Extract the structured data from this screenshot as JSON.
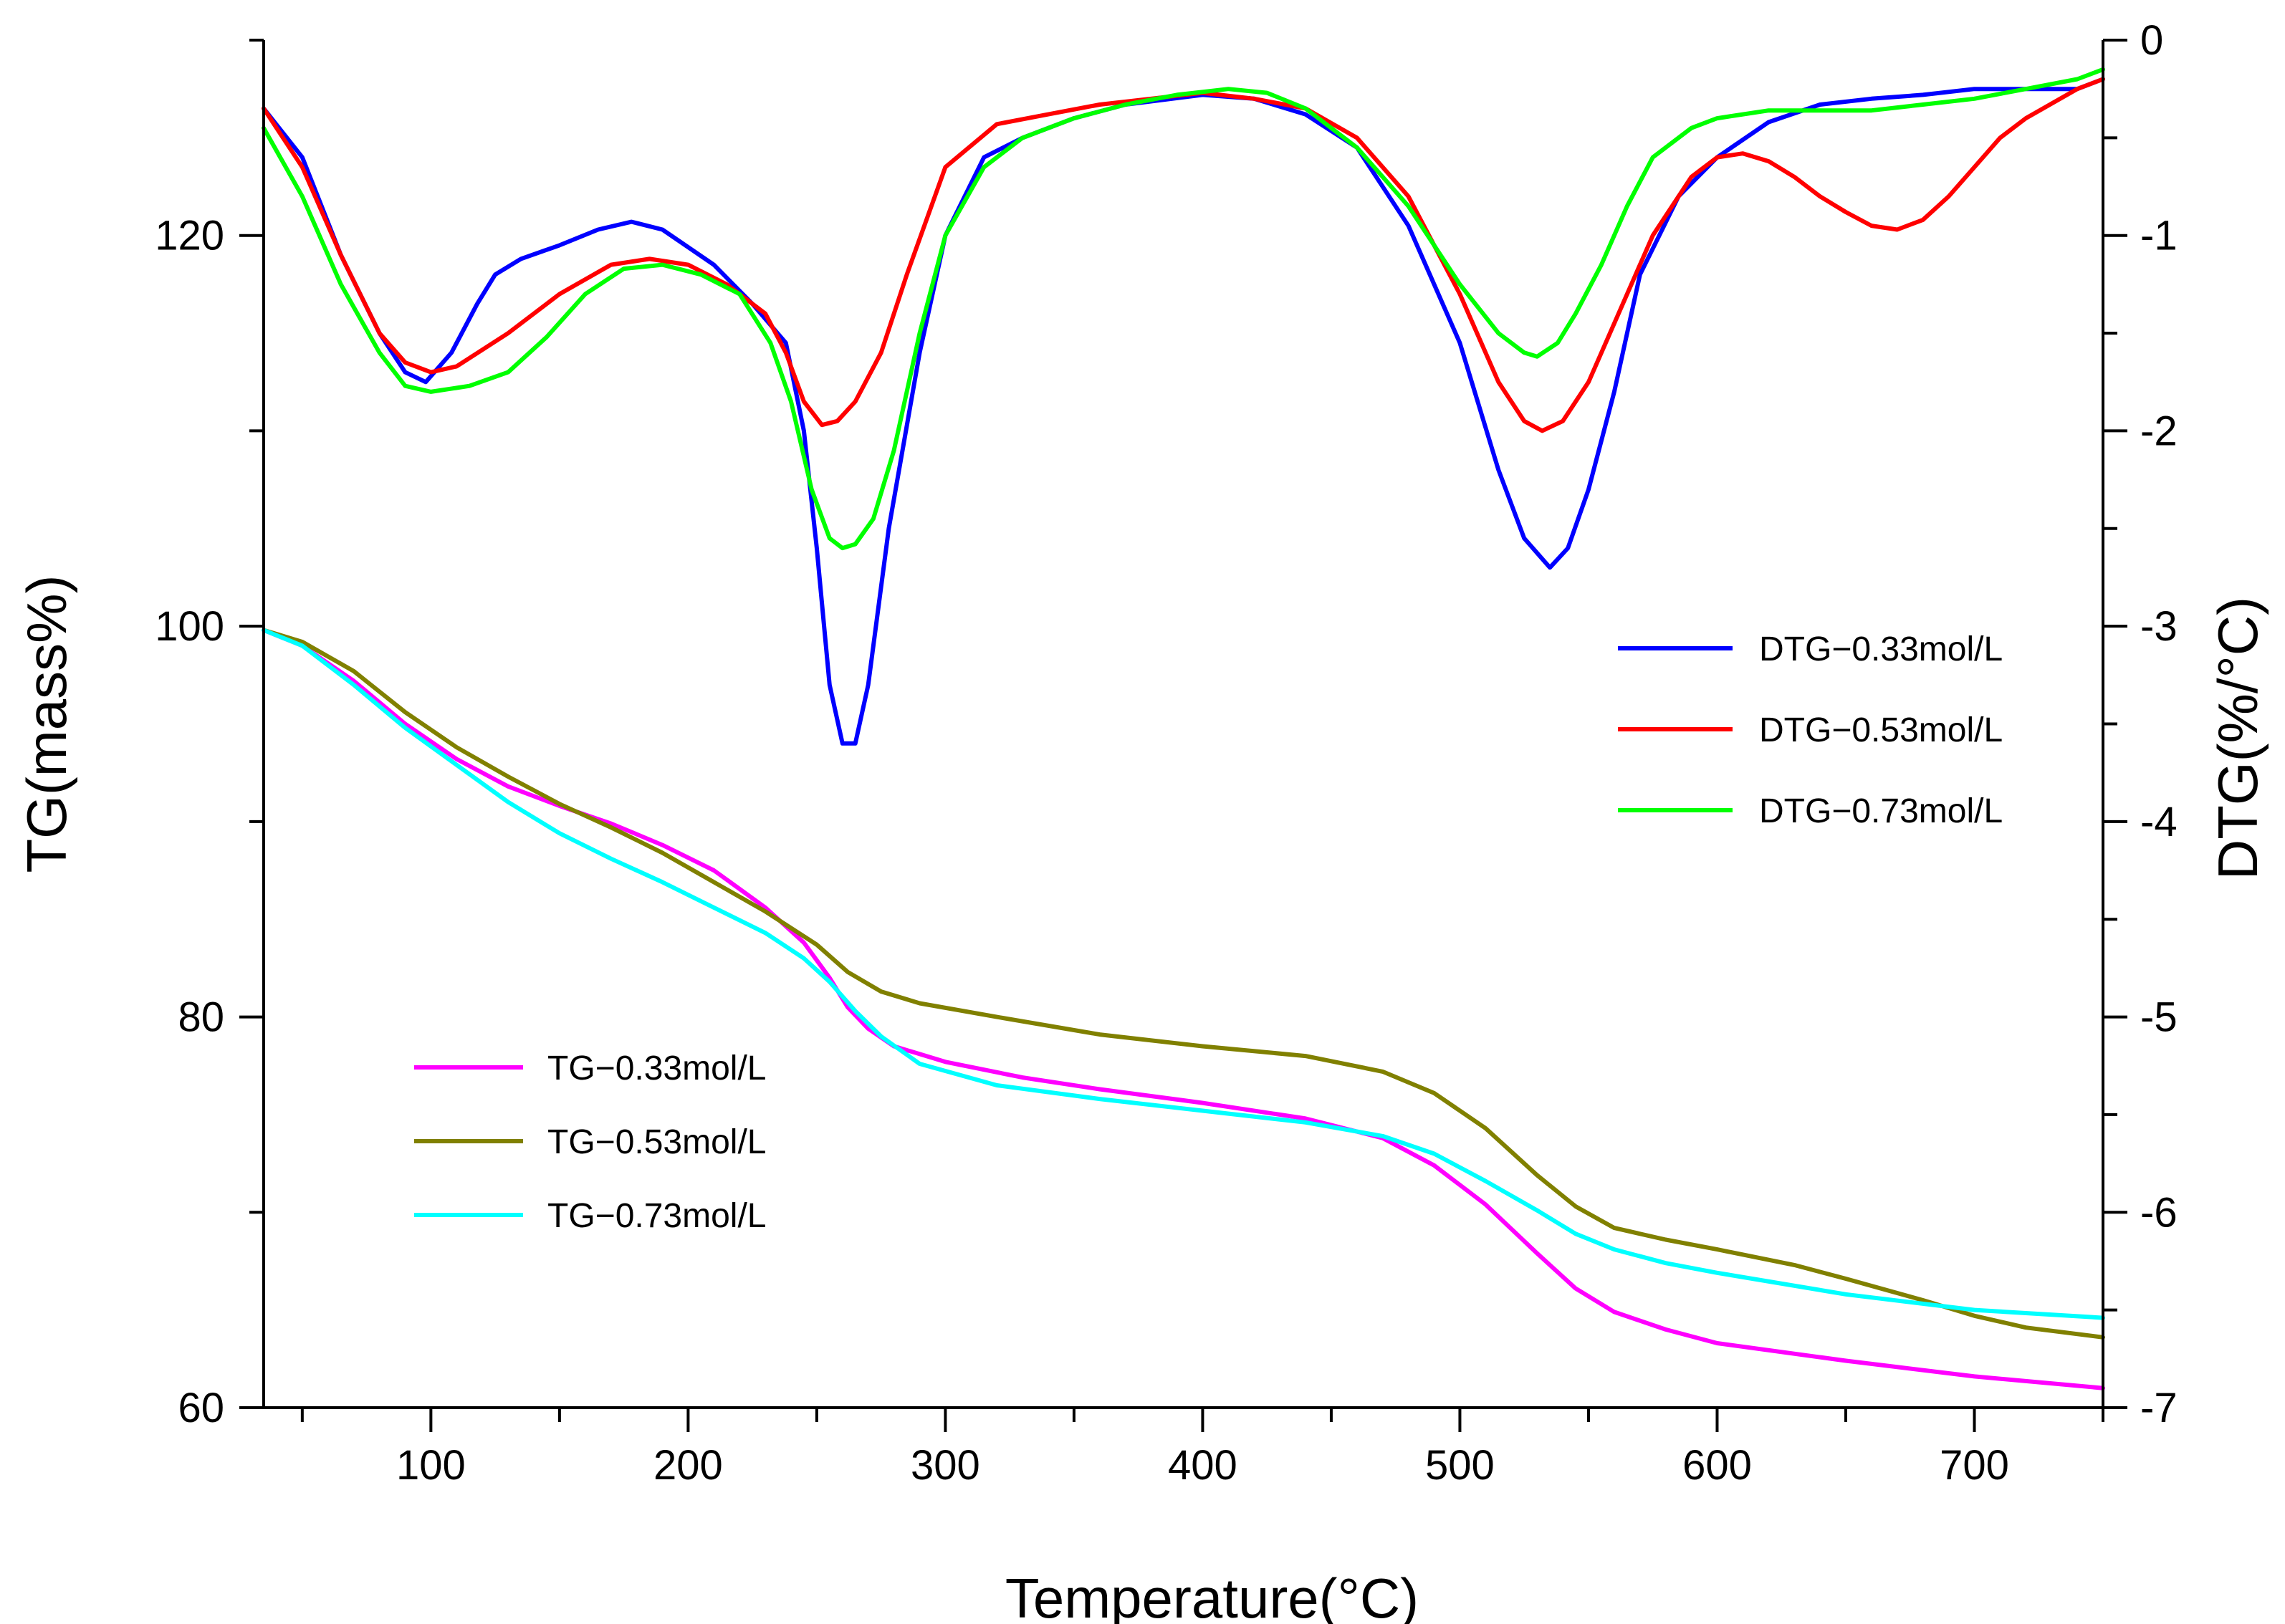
{
  "chart_data": {
    "type": "line",
    "title": "",
    "xlabel": "Temperature(°C)",
    "ylabel_left": "TG(mass%)",
    "ylabel_right": "DTG(%/°C)",
    "xlim": [
      35,
      750
    ],
    "ylim_left": [
      60,
      130
    ],
    "ylim_right": [
      -7,
      0
    ],
    "x_ticks": [
      100,
      200,
      300,
      400,
      500,
      600,
      700
    ],
    "x_tick_labels": [
      "100",
      "200",
      "300",
      "400",
      "500",
      "600",
      "700"
    ],
    "y_left_ticks": [
      60,
      80,
      100,
      120
    ],
    "y_left_tick_labels": [
      "60",
      "80",
      "100",
      "120"
    ],
    "y_right_ticks": [
      0,
      -1,
      -2,
      -3,
      -4,
      -5,
      -6,
      -7
    ],
    "y_right_tick_labels": [
      "0",
      "-1",
      "-2",
      "-3",
      "-4",
      "-5",
      "-6",
      "-7"
    ],
    "grid": false,
    "series": [
      {
        "name": "DTG−0.33mol/L",
        "axis": "right",
        "color": "#0000ff",
        "x": [
          35,
          50,
          65,
          80,
          90,
          98,
          108,
          118,
          125,
          135,
          150,
          165,
          178,
          190,
          210,
          225,
          238,
          245,
          250,
          255,
          260,
          265,
          270,
          278,
          290,
          300,
          315,
          330,
          350,
          370,
          400,
          420,
          440,
          460,
          480,
          500,
          515,
          525,
          535,
          542,
          550,
          560,
          570,
          585,
          600,
          620,
          640,
          660,
          680,
          700,
          720,
          740,
          750
        ],
        "y": [
          -0.35,
          -0.6,
          -1.1,
          -1.5,
          -1.7,
          -1.75,
          -1.6,
          -1.35,
          -1.2,
          -1.12,
          -1.05,
          -0.97,
          -0.93,
          -0.97,
          -1.15,
          -1.35,
          -1.55,
          -2.0,
          -2.6,
          -3.3,
          -3.6,
          -3.6,
          -3.3,
          -2.5,
          -1.6,
          -1.0,
          -0.6,
          -0.5,
          -0.4,
          -0.33,
          -0.28,
          -0.3,
          -0.38,
          -0.55,
          -0.95,
          -1.55,
          -2.2,
          -2.55,
          -2.7,
          -2.6,
          -2.3,
          -1.8,
          -1.2,
          -0.8,
          -0.6,
          -0.42,
          -0.33,
          -0.3,
          -0.28,
          -0.25,
          -0.25,
          -0.25,
          -0.2
        ]
      },
      {
        "name": "DTG−0.53mol/L",
        "axis": "right",
        "color": "#ff0000",
        "x": [
          35,
          50,
          65,
          80,
          90,
          100,
          110,
          130,
          150,
          170,
          185,
          200,
          215,
          230,
          238,
          245,
          252,
          258,
          265,
          275,
          285,
          300,
          320,
          340,
          360,
          380,
          400,
          420,
          440,
          460,
          480,
          500,
          515,
          525,
          532,
          540,
          550,
          560,
          575,
          590,
          600,
          610,
          620,
          630,
          640,
          650,
          660,
          670,
          680,
          690,
          700,
          710,
          720,
          740,
          750
        ],
        "y": [
          -0.35,
          -0.65,
          -1.1,
          -1.5,
          -1.65,
          -1.7,
          -1.67,
          -1.5,
          -1.3,
          -1.15,
          -1.12,
          -1.15,
          -1.25,
          -1.4,
          -1.6,
          -1.85,
          -1.97,
          -1.95,
          -1.85,
          -1.6,
          -1.2,
          -0.65,
          -0.43,
          -0.38,
          -0.33,
          -0.3,
          -0.27,
          -0.3,
          -0.35,
          -0.5,
          -0.8,
          -1.3,
          -1.75,
          -1.95,
          -2.0,
          -1.95,
          -1.75,
          -1.45,
          -1.0,
          -0.7,
          -0.6,
          -0.58,
          -0.62,
          -0.7,
          -0.8,
          -0.88,
          -0.95,
          -0.97,
          -0.92,
          -0.8,
          -0.65,
          -0.5,
          -0.4,
          -0.25,
          -0.2
        ]
      },
      {
        "name": "DTG−0.73mol/L",
        "axis": "right",
        "color": "#00ff00",
        "x": [
          35,
          50,
          65,
          80,
          90,
          100,
          115,
          130,
          145,
          160,
          175,
          190,
          205,
          220,
          232,
          240,
          248,
          255,
          260,
          265,
          272,
          280,
          290,
          300,
          315,
          330,
          350,
          370,
          390,
          410,
          425,
          440,
          460,
          480,
          500,
          515,
          525,
          530,
          538,
          545,
          555,
          565,
          575,
          590,
          600,
          620,
          640,
          660,
          680,
          700,
          720,
          740,
          750
        ],
        "y": [
          -0.45,
          -0.8,
          -1.25,
          -1.6,
          -1.77,
          -1.8,
          -1.77,
          -1.7,
          -1.52,
          -1.3,
          -1.17,
          -1.15,
          -1.2,
          -1.3,
          -1.55,
          -1.85,
          -2.3,
          -2.55,
          -2.6,
          -2.58,
          -2.45,
          -2.1,
          -1.5,
          -1.0,
          -0.65,
          -0.5,
          -0.4,
          -0.33,
          -0.28,
          -0.25,
          -0.27,
          -0.35,
          -0.55,
          -0.85,
          -1.25,
          -1.5,
          -1.6,
          -1.62,
          -1.55,
          -1.4,
          -1.15,
          -0.85,
          -0.6,
          -0.45,
          -0.4,
          -0.36,
          -0.36,
          -0.36,
          -0.33,
          -0.3,
          -0.25,
          -0.2,
          -0.15
        ]
      },
      {
        "name": "TG−0.33mol/L",
        "axis": "left",
        "color": "#ff00ff",
        "x": [
          35,
          50,
          70,
          90,
          110,
          130,
          150,
          170,
          190,
          210,
          230,
          245,
          255,
          262,
          270,
          280,
          300,
          330,
          360,
          400,
          440,
          470,
          490,
          510,
          530,
          545,
          560,
          580,
          600,
          650,
          700,
          750
        ],
        "y": [
          99.8,
          99.0,
          97.2,
          95.0,
          93.2,
          91.8,
          90.8,
          89.9,
          88.8,
          87.5,
          85.6,
          83.8,
          82.0,
          80.5,
          79.4,
          78.5,
          77.7,
          76.9,
          76.3,
          75.6,
          74.8,
          73.8,
          72.4,
          70.4,
          67.9,
          66.1,
          64.9,
          64.0,
          63.3,
          62.4,
          61.6,
          61.0
        ]
      },
      {
        "name": "TG−0.53mol/L",
        "axis": "left",
        "color": "#808000",
        "x": [
          35,
          50,
          70,
          90,
          110,
          130,
          150,
          170,
          190,
          210,
          230,
          250,
          262,
          275,
          290,
          320,
          360,
          400,
          440,
          470,
          490,
          510,
          530,
          545,
          560,
          580,
          600,
          630,
          650,
          680,
          700,
          720,
          750
        ],
        "y": [
          99.8,
          99.2,
          97.7,
          95.6,
          93.8,
          92.3,
          90.9,
          89.7,
          88.4,
          86.9,
          85.4,
          83.7,
          82.3,
          81.3,
          80.7,
          80.0,
          79.1,
          78.5,
          78.0,
          77.2,
          76.1,
          74.3,
          71.9,
          70.3,
          69.2,
          68.6,
          68.1,
          67.3,
          66.6,
          65.5,
          64.7,
          64.1,
          63.6
        ]
      },
      {
        "name": "TG−0.73mol/L",
        "axis": "left",
        "color": "#00ffff",
        "x": [
          35,
          50,
          70,
          90,
          110,
          130,
          150,
          170,
          190,
          210,
          230,
          245,
          255,
          265,
          275,
          290,
          320,
          360,
          400,
          440,
          470,
          490,
          510,
          530,
          545,
          560,
          580,
          600,
          650,
          700,
          750
        ],
        "y": [
          99.8,
          99.0,
          97.0,
          94.8,
          92.9,
          91.0,
          89.4,
          88.1,
          86.9,
          85.6,
          84.3,
          83.0,
          81.8,
          80.3,
          79.0,
          77.6,
          76.5,
          75.8,
          75.2,
          74.6,
          73.9,
          73.0,
          71.6,
          70.1,
          68.9,
          68.1,
          67.4,
          66.9,
          65.8,
          65.0,
          64.6
        ]
      }
    ],
    "legend_dtg": {
      "placement": "right-middle",
      "entries": [
        "DTG−0.33mol/L",
        "DTG−0.53mol/L",
        "DTG−0.73mol/L"
      ]
    },
    "legend_tg": {
      "placement": "bottom-left",
      "entries": [
        "TG−0.33mol/L",
        "TG−0.53mol/L",
        "TG−0.73mol/L"
      ]
    }
  }
}
